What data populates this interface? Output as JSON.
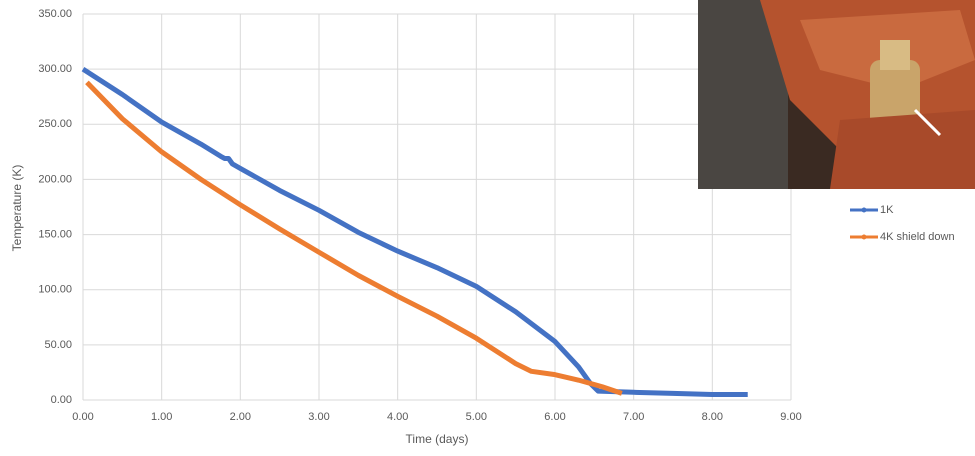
{
  "chart_data": {
    "type": "line",
    "x_label": "Time (days)",
    "y_label": "Temperature (K)",
    "xlim": [
      0,
      9
    ],
    "ylim": [
      0,
      350
    ],
    "xticks": [
      {
        "value": 0,
        "label": "0.00"
      },
      {
        "value": 1,
        "label": "1.00"
      },
      {
        "value": 2,
        "label": "2.00"
      },
      {
        "value": 3,
        "label": "3.00"
      },
      {
        "value": 4,
        "label": "4.00"
      },
      {
        "value": 5,
        "label": "5.00"
      },
      {
        "value": 6,
        "label": "6.00"
      },
      {
        "value": 7,
        "label": "7.00"
      },
      {
        "value": 8,
        "label": "8.00"
      },
      {
        "value": 9,
        "label": "9.00"
      }
    ],
    "yticks": [
      {
        "value": 0,
        "label": "0.00"
      },
      {
        "value": 50,
        "label": "50.00"
      },
      {
        "value": 100,
        "label": "100.00"
      },
      {
        "value": 150,
        "label": "150.00"
      },
      {
        "value": 200,
        "label": "200.00"
      },
      {
        "value": 250,
        "label": "250.00"
      },
      {
        "value": 300,
        "label": "300.00"
      },
      {
        "value": 350,
        "label": "350.00"
      }
    ],
    "grid": true,
    "legend": "right",
    "series": [
      {
        "name": "1K",
        "color": "#4472c4",
        "x": [
          0,
          0.5,
          1.0,
          1.5,
          1.75,
          1.8,
          1.85,
          1.9,
          2.0,
          2.5,
          3.0,
          3.5,
          4.0,
          4.5,
          5.0,
          5.5,
          6.0,
          6.3,
          6.45,
          6.55,
          7.0,
          7.5,
          8.0,
          8.45
        ],
        "values": [
          300,
          277,
          252,
          232,
          221,
          219,
          219,
          214,
          210,
          190,
          172,
          152,
          135,
          120,
          103,
          80,
          53,
          30,
          15,
          8,
          7,
          6,
          5,
          5
        ]
      },
      {
        "name": "4K shield down",
        "color": "#ed7d31",
        "x": [
          0.05,
          0.5,
          1.0,
          1.5,
          2.0,
          2.5,
          3.0,
          3.5,
          4.0,
          4.5,
          5.0,
          5.5,
          5.7,
          6.0,
          6.3,
          6.6,
          6.85
        ],
        "values": [
          288,
          255,
          225,
          200,
          177,
          155,
          134,
          113,
          94,
          76,
          56,
          33,
          26,
          23,
          18,
          12,
          6
        ]
      }
    ]
  }
}
